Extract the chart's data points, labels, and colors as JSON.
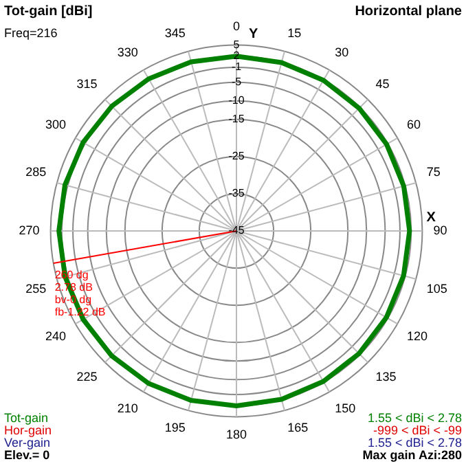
{
  "chart_data": {
    "type": "radar",
    "title": "Tot-gain [dBi]",
    "subtitle": "Horizontal plane",
    "xlabel": "X",
    "ylabel": "Y",
    "categories": [
      "0",
      "15",
      "30",
      "45",
      "60",
      "75",
      "90",
      "105",
      "120",
      "135",
      "150",
      "165",
      "180",
      "195",
      "210",
      "225",
      "240",
      "255",
      "270",
      "285",
      "300",
      "315",
      "330",
      "345"
    ],
    "series": [
      {
        "name": "Tot-gain",
        "color": "#008000",
        "values": [
          2.0,
          1.9,
          1.8,
          1.7,
          1.65,
          1.6,
          1.57,
          1.55,
          1.58,
          1.65,
          1.75,
          1.9,
          2.05,
          2.2,
          2.35,
          2.5,
          2.62,
          2.72,
          2.77,
          2.77,
          2.65,
          2.45,
          2.25,
          2.1
        ]
      }
    ],
    "ylim": [
      -45,
      5
    ],
    "yticks": [
      -45,
      -35,
      -25,
      -15,
      -10,
      -5,
      -1,
      2,
      5
    ],
    "ref_lines": [
      {
        "axis": "x",
        "value": "260",
        "label": "dg\n2.78 dB\nbv-0 dg\nfb-1.22 dB",
        "color": "#ff0000"
      }
    ],
    "annotations": [
      "Freq=216",
      "1.55 < dBi < 2.78",
      "Hor-gain",
      "-999 < dBi < -99",
      "Ver-gain",
      "1.55 < dBi < 2.78",
      "Elev.= 0",
      "Max gain Azi:280"
    ],
    "grid": true,
    "legend": "bottom left",
    "marker": "none",
    "line_style": "solid"
  }
}
